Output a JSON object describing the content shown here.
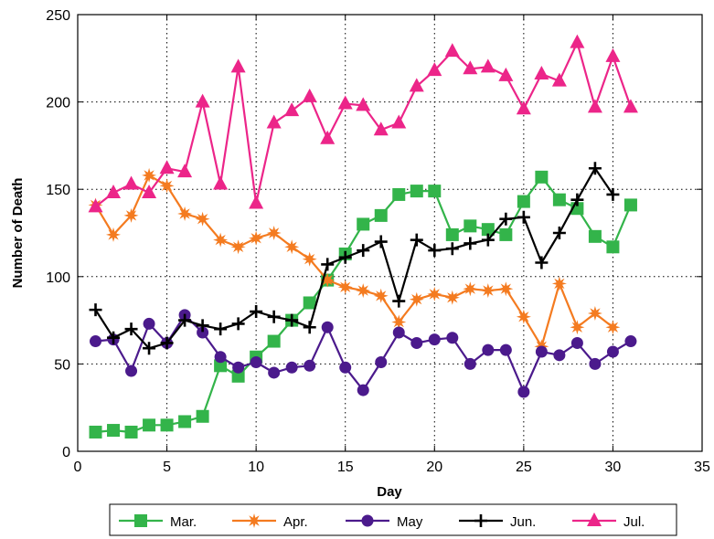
{
  "chart_data": {
    "type": "line",
    "xlabel": "Day",
    "ylabel": "Number of Death",
    "xlim": [
      0,
      35
    ],
    "ylim": [
      0,
      250
    ],
    "xticks": [
      0,
      5,
      10,
      15,
      20,
      25,
      30,
      35
    ],
    "yticks": [
      0,
      50,
      100,
      150,
      200,
      250
    ],
    "grid": true,
    "legend_position": "bottom-outside",
    "series": [
      {
        "name": "Mar.",
        "color": "#33b44a",
        "marker": "square",
        "x": [
          1,
          2,
          3,
          4,
          5,
          6,
          7,
          8,
          9,
          10,
          11,
          12,
          13,
          14,
          15,
          16,
          17,
          18,
          19,
          20,
          21,
          22,
          23,
          24,
          25,
          26,
          27,
          28,
          29,
          30,
          31
        ],
        "y": [
          11,
          12,
          11,
          15,
          15,
          17,
          20,
          49,
          43,
          54,
          63,
          75,
          85,
          98,
          113,
          130,
          135,
          147,
          149,
          149,
          124,
          129,
          127,
          124,
          143,
          157,
          144,
          139,
          123,
          117,
          141
        ]
      },
      {
        "name": "Apr.",
        "color": "#f47b20",
        "marker": "star",
        "x": [
          1,
          2,
          3,
          4,
          5,
          6,
          7,
          8,
          9,
          10,
          11,
          12,
          13,
          14,
          15,
          16,
          17,
          18,
          19,
          20,
          21,
          22,
          23,
          24,
          25,
          26,
          27,
          28,
          29,
          30
        ],
        "y": [
          141,
          124,
          135,
          158,
          152,
          136,
          133,
          121,
          117,
          122,
          125,
          117,
          110,
          98,
          94,
          92,
          89,
          74,
          87,
          90,
          88,
          93,
          92,
          93,
          77,
          60,
          96,
          71,
          79,
          71
        ]
      },
      {
        "name": "May",
        "color": "#4b1a8c",
        "marker": "circle",
        "x": [
          1,
          2,
          3,
          4,
          5,
          6,
          7,
          8,
          9,
          10,
          11,
          12,
          13,
          14,
          15,
          16,
          17,
          18,
          19,
          20,
          21,
          22,
          23,
          24,
          25,
          26,
          27,
          28,
          29,
          30,
          31
        ],
        "y": [
          63,
          64,
          46,
          73,
          62,
          78,
          68,
          54,
          48,
          51,
          45,
          48,
          49,
          71,
          48,
          35,
          51,
          68,
          62,
          64,
          65,
          50,
          58,
          58,
          34,
          57,
          55,
          62,
          50,
          57,
          63
        ]
      },
      {
        "name": "Jun.",
        "color": "#000000",
        "marker": "plus",
        "x": [
          1,
          2,
          3,
          4,
          5,
          6,
          7,
          8,
          9,
          10,
          11,
          12,
          13,
          14,
          15,
          16,
          17,
          18,
          19,
          20,
          21,
          22,
          23,
          24,
          25,
          26,
          27,
          28,
          29,
          30
        ],
        "y": [
          81,
          65,
          70,
          59,
          62,
          75,
          72,
          70,
          73,
          80,
          77,
          75,
          71,
          107,
          111,
          115,
          120,
          86,
          121,
          115,
          116,
          119,
          121,
          133,
          134,
          108,
          125,
          144,
          162,
          147
        ]
      },
      {
        "name": "Jul.",
        "color": "#ec2589",
        "marker": "triangle",
        "x": [
          1,
          2,
          3,
          4,
          5,
          6,
          7,
          8,
          9,
          10,
          11,
          12,
          13,
          14,
          15,
          16,
          17,
          18,
          19,
          20,
          21,
          22,
          23,
          24,
          25,
          26,
          27,
          28,
          29,
          30,
          31
        ],
        "y": [
          140,
          148,
          153,
          148,
          162,
          160,
          200,
          153,
          220,
          142,
          188,
          195,
          203,
          179,
          199,
          198,
          184,
          188,
          209,
          218,
          229,
          219,
          220,
          215,
          196,
          216,
          212,
          234,
          197,
          226,
          197
        ]
      }
    ]
  }
}
